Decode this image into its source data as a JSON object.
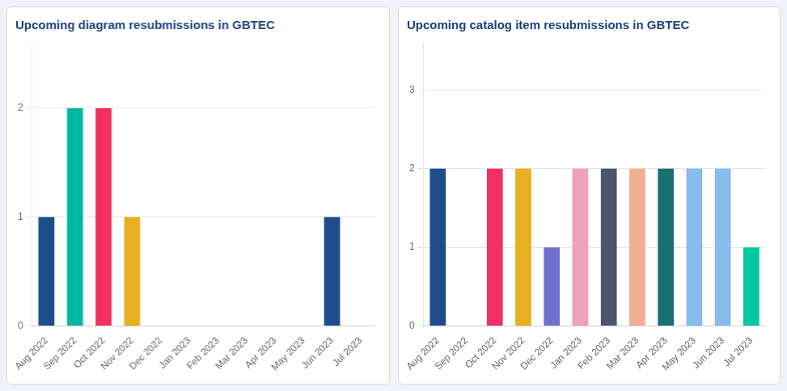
{
  "chart_data": [
    {
      "type": "bar",
      "title": "Upcoming diagram resubmissions in GBTEC",
      "categories": [
        "Aug 2022",
        "Sep 2022",
        "Oct 2022",
        "Nov 2022",
        "Dec 2022",
        "Jan 2023",
        "Feb 2023",
        "Mar 2023",
        "Apr 2023",
        "May 2023",
        "Jun 2023",
        "Jul 2023"
      ],
      "values": [
        1,
        2,
        2,
        1,
        0,
        0,
        0,
        0,
        0,
        0,
        1,
        0
      ],
      "colors": [
        "#1e4d8c",
        "#00b8a0",
        "#f03060",
        "#e8b020",
        "#cccccc",
        "#cccccc",
        "#cccccc",
        "#cccccc",
        "#cccccc",
        "#cccccc",
        "#1e4d8c",
        "#cccccc"
      ],
      "ylim": [
        0,
        2.6
      ],
      "yticks": [
        0,
        1,
        2
      ],
      "grid": true
    },
    {
      "type": "bar",
      "title": "Upcoming catalog item resubmissions in GBTEC",
      "categories": [
        "Aug 2022",
        "Sep 2022",
        "Oct 2022",
        "Nov 2022",
        "Dec 2022",
        "Jan 2023",
        "Feb 2023",
        "Mar 2023",
        "Apr 2023",
        "May 2023",
        "Jun 2023",
        "Jul 2023"
      ],
      "values": [
        2,
        0,
        2,
        2,
        1,
        2,
        2,
        2,
        2,
        2,
        2,
        1
      ],
      "colors": [
        "#1e4d8c",
        "#cccccc",
        "#f03060",
        "#e8b020",
        "#7070cc",
        "#f0a0bc",
        "#4a5568",
        "#f0b090",
        "#1a7070",
        "#88bbee",
        "#88bbee",
        "#00c8a0"
      ],
      "ylim": [
        0,
        3.6
      ],
      "yticks": [
        0,
        1,
        2,
        3
      ],
      "grid": true
    }
  ]
}
